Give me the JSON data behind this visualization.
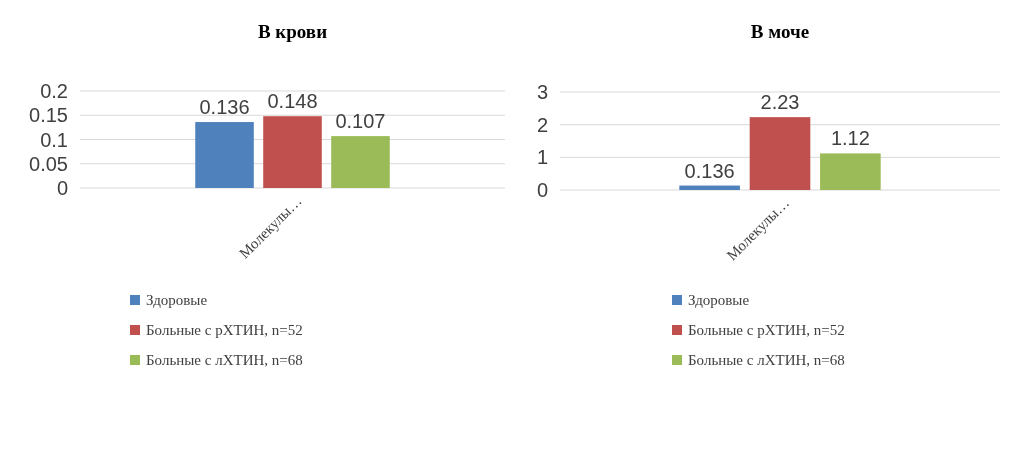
{
  "chart_data": [
    {
      "type": "bar",
      "title": "В крови",
      "categories": [
        "Молекулы…"
      ],
      "series": [
        {
          "name": "Здоровые",
          "color": "#4f81bd",
          "values": [
            0.136
          ]
        },
        {
          "name": "Больные с рХТИН, n=52",
          "color": "#c0504d",
          "values": [
            0.148
          ]
        },
        {
          "name": "Больные с лХТИН, n=68",
          "color": "#9bbb59",
          "values": [
            0.107
          ]
        }
      ],
      "ylim": [
        0,
        0.2
      ],
      "yticks": [
        0,
        0.05,
        0.1,
        0.15,
        0.2
      ],
      "grid": "y",
      "legend": "bottom",
      "data_labels": true
    },
    {
      "type": "bar",
      "title": "В моче",
      "categories": [
        "Молекулы…"
      ],
      "series": [
        {
          "name": "Здоровые",
          "color": "#4f81bd",
          "values": [
            0.136
          ]
        },
        {
          "name": "Больные с рХТИН, n=52",
          "color": "#c0504d",
          "values": [
            2.23
          ]
        },
        {
          "name": "Больные с лХТИН, n=68",
          "color": "#9bbb59",
          "values": [
            1.12
          ]
        }
      ],
      "ylim": [
        0,
        3
      ],
      "yticks": [
        0,
        1,
        2,
        3
      ],
      "grid": "y",
      "legend": "bottom",
      "data_labels": true
    }
  ]
}
